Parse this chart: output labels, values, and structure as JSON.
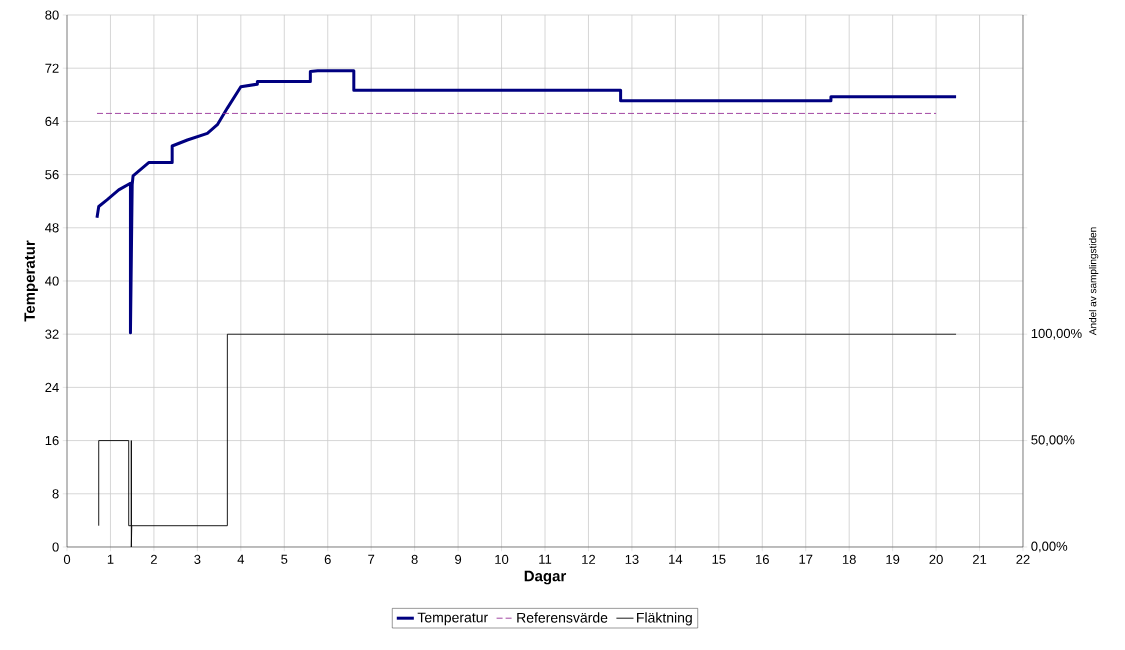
{
  "chart_data": {
    "type": "line",
    "xlabel": "Dagar",
    "ylabel": "Temperatur",
    "y2label": "Andel av samplingstiden",
    "xlim": [
      0,
      22
    ],
    "xticks": [
      0,
      1,
      2,
      3,
      4,
      5,
      6,
      7,
      8,
      9,
      10,
      11,
      12,
      13,
      14,
      15,
      16,
      17,
      18,
      19,
      20,
      21,
      22
    ],
    "ylim": [
      0,
      80
    ],
    "yticks": [
      0,
      8,
      16,
      24,
      32,
      40,
      48,
      56,
      64,
      72,
      80
    ],
    "y2lim": [
      0,
      250
    ],
    "y2ticks": [
      {
        "value": 0,
        "label": "0,00%"
      },
      {
        "value": 50,
        "label": "50,00%"
      },
      {
        "value": 100,
        "label": "100,00%"
      },
      {
        "value": 150,
        "label": null
      },
      {
        "value": 200,
        "label": null
      },
      {
        "value": 250,
        "label": null
      }
    ],
    "grid": true,
    "legend": "bottom",
    "marker": "none",
    "series": [
      {
        "name": "Temperatur",
        "color": "#000080",
        "line_style": "solid",
        "x": [
          0.69,
          0.73,
          0.92,
          1.19,
          1.46,
          1.46,
          1.5,
          1.52,
          1.88,
          2.42,
          2.42,
          2.77,
          3.23,
          3.46,
          3.69,
          4.0,
          4.38,
          4.38,
          5.6,
          5.6,
          5.77,
          6.6,
          6.6,
          12.74,
          12.74,
          17.58,
          17.58,
          20.46
        ],
        "values": [
          49.5,
          51.2,
          52.2,
          53.7,
          54.7,
          32.2,
          54.5,
          55.8,
          57.8,
          57.8,
          60.3,
          61.2,
          62.2,
          63.5,
          66,
          69.2,
          69.6,
          70,
          70,
          71.5,
          71.6,
          71.6,
          68.7,
          68.7,
          67.1,
          67.1,
          67.7,
          67.7
        ]
      },
      {
        "name": "Referensvärde",
        "color": "#993399",
        "line_style": "dashed",
        "x": [
          0.69,
          20.0
        ],
        "values": [
          65.2,
          65.2
        ]
      },
      {
        "name": "Fläktning",
        "color": "#000000",
        "line_style": "solid",
        "axis": "y2",
        "x": [
          0.73,
          0.73,
          1.42,
          1.42,
          1.48,
          1.48,
          1.48,
          1.49,
          3.69,
          3.69,
          20.46
        ],
        "values": [
          10,
          50,
          50,
          10,
          10,
          50,
          0,
          10,
          10,
          100,
          100
        ]
      }
    ]
  }
}
